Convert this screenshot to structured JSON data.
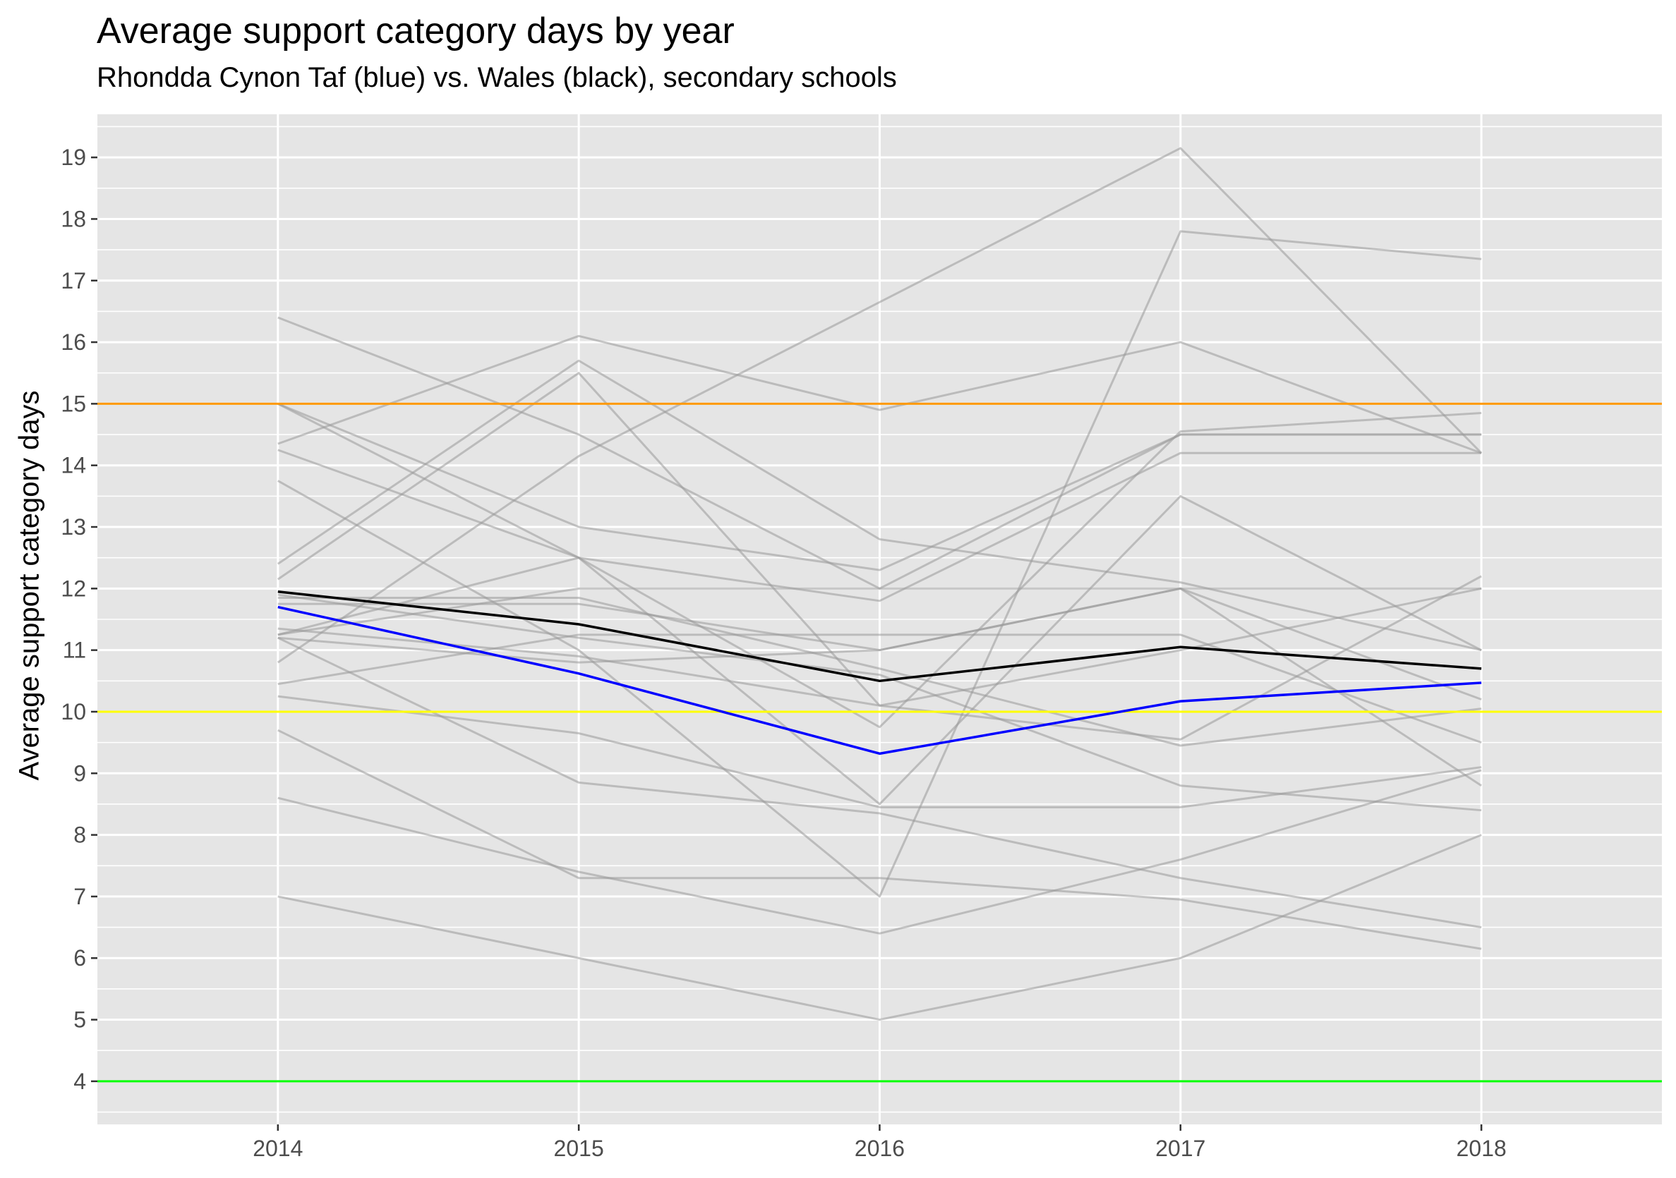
{
  "chart_data": {
    "type": "line",
    "title": "Average support category days by year",
    "subtitle": "Rhondda Cynon Taf (blue) vs. Wales (black), secondary schools",
    "xlabel": "",
    "ylabel": "Average support category days",
    "x": [
      2014,
      2015,
      2016,
      2017,
      2018
    ],
    "xlim": [
      2013.4,
      2018.6
    ],
    "ylim": [
      3.3,
      19.7
    ],
    "yticks": [
      4,
      5,
      6,
      7,
      8,
      9,
      10,
      11,
      12,
      13,
      14,
      15,
      16,
      17,
      18,
      19
    ],
    "grid": true,
    "legend": "none",
    "colors": {
      "panel": "#e5e5e5",
      "grid": "#ffffff",
      "background_series": "#999999",
      "rct": "#0000ff",
      "wales": "#000000"
    },
    "reference_lines": [
      {
        "y": 15,
        "color": "#ff9900"
      },
      {
        "y": 10,
        "color": "#ffff00"
      },
      {
        "y": 4,
        "color": "#00ff00"
      }
    ],
    "background_series": [
      {
        "values": [
          16.4,
          14.5,
          12.0,
          14.5,
          14.5
        ]
      },
      {
        "values": [
          15.0,
          13.0,
          12.3,
          14.5,
          14.5
        ]
      },
      {
        "values": [
          15.0,
          12.5,
          11.8,
          14.2,
          14.2
        ]
      },
      {
        "values": [
          14.35,
          16.1,
          14.9,
          16.0,
          14.2
        ]
      },
      {
        "values": [
          14.25,
          12.5,
          8.5,
          13.5,
          11.0
        ]
      },
      {
        "values": [
          13.75,
          11.0,
          7.0,
          17.8,
          17.35
        ]
      },
      {
        "values": [
          12.4,
          15.7,
          12.8,
          12.1,
          11.0
        ]
      },
      {
        "values": [
          12.15,
          15.5,
          10.1,
          9.55,
          12.2
        ]
      },
      {
        "values": [
          11.85,
          11.85,
          10.7,
          9.45,
          10.05
        ]
      },
      {
        "values": [
          11.75,
          11.75,
          11.0,
          12.0,
          8.8
        ]
      },
      {
        "values": [
          11.25,
          12.5,
          9.75,
          14.55,
          14.85
        ]
      },
      {
        "values": [
          11.25,
          12.0,
          12.0,
          12.0,
          12.0
        ]
      },
      {
        "values": [
          11.2,
          10.8,
          11.0,
          12.0,
          10.2
        ]
      },
      {
        "values": [
          10.8,
          14.15,
          16.65,
          19.15,
          14.2
        ]
      },
      {
        "values": [
          10.45,
          11.25,
          11.25,
          11.25,
          9.5
        ]
      },
      {
        "values": [
          10.25,
          9.65,
          8.45,
          8.45,
          9.1
        ]
      },
      {
        "values": [
          9.7,
          7.3,
          7.3,
          6.95,
          6.15
        ]
      },
      {
        "values": [
          8.6,
          7.4,
          6.4,
          7.6,
          9.05
        ]
      },
      {
        "values": [
          7.0,
          6.0,
          5.0,
          6.0,
          8.0
        ]
      },
      {
        "values": [
          11.2,
          8.85,
          8.35,
          7.3,
          6.5
        ]
      },
      {
        "values": [
          11.9,
          11.2,
          10.6,
          8.8,
          8.4
        ]
      },
      {
        "values": [
          11.35,
          10.9,
          10.1,
          11.0,
          12.0
        ]
      }
    ],
    "series": [
      {
        "values": [
          11.95,
          11.42,
          10.5,
          11.05,
          10.7
        ],
        "color": "#000000"
      },
      {
        "values": [
          11.7,
          10.62,
          9.32,
          10.17,
          10.47
        ],
        "color": "#0000ff"
      }
    ]
  }
}
